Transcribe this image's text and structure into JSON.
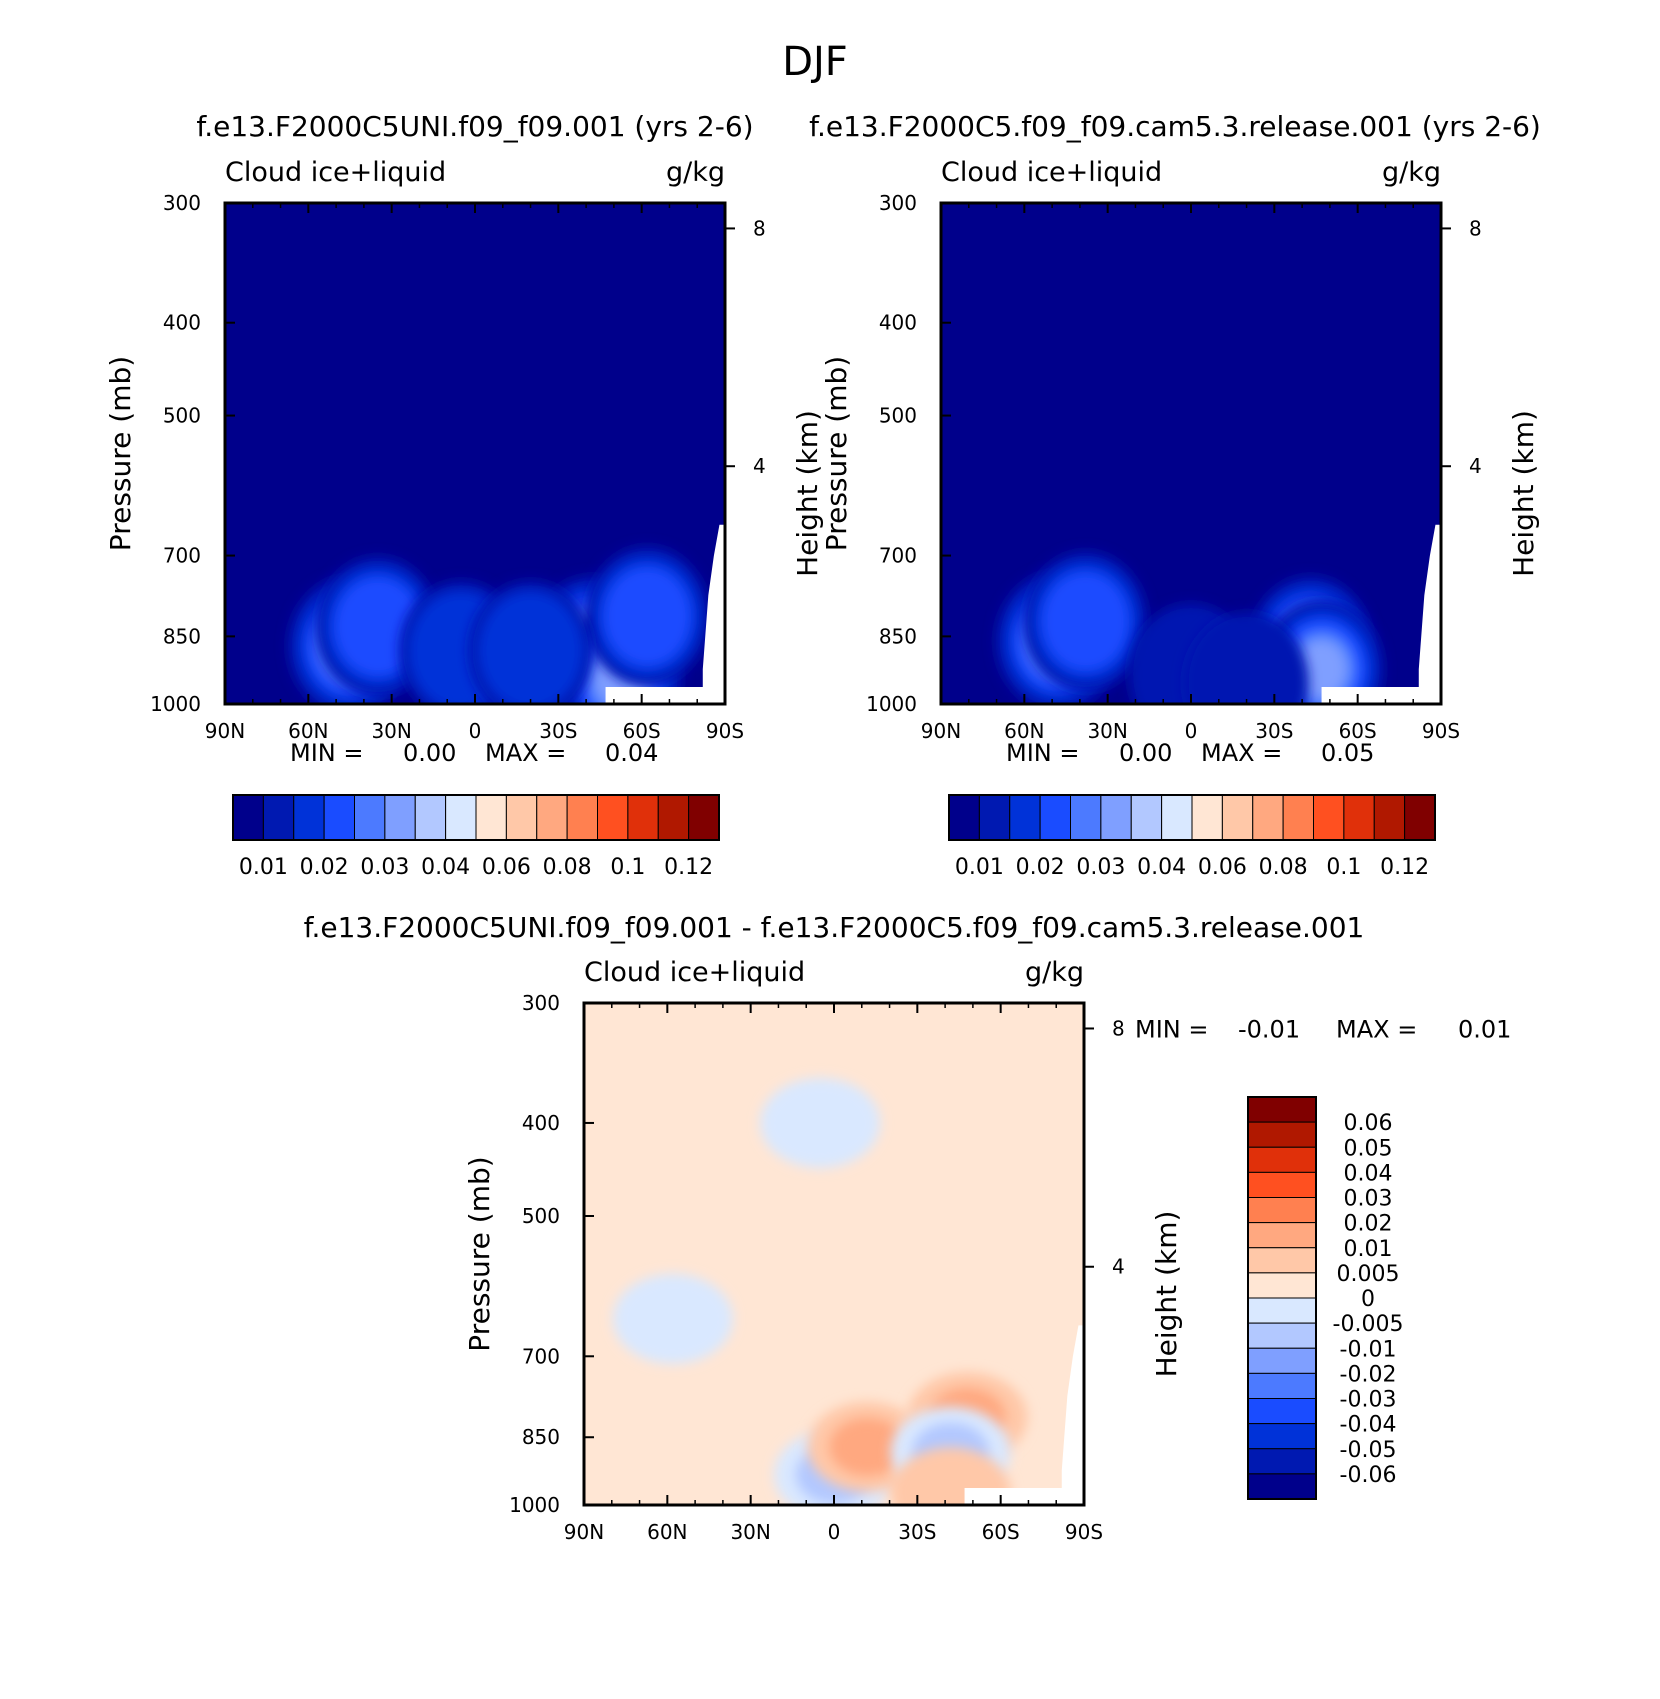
{
  "figure": {
    "title": "DJF"
  },
  "colors": {
    "frame": "#000000",
    "abs_palette": [
      "#00008b",
      "#0019b1",
      "#0032d8",
      "#1a4cff",
      "#4c7aff",
      "#7f9fff",
      "#b2c8ff",
      "#d9e8ff",
      "#ffe6d4",
      "#ffc8a8",
      "#ffa880",
      "#ff8050",
      "#ff5020",
      "#e0300a",
      "#b01800",
      "#800000"
    ],
    "diff_palette": [
      "#00008b",
      "#0019b1",
      "#0032d8",
      "#1a4cff",
      "#4c7aff",
      "#7f9fff",
      "#b2c8ff",
      "#d9e8ff",
      "#ffe6d4",
      "#ffc8a8",
      "#ffa880",
      "#ff8050",
      "#ff5020",
      "#e0300a",
      "#b01800",
      "#800000"
    ]
  },
  "chart_data": [
    {
      "id": "panel-1",
      "type": "heatmap",
      "title": "f.e13.F2000C5UNI.f09_f09.001 (yrs 2-6)",
      "variable_label": "Cloud ice+liquid",
      "units_label": "g/kg",
      "ylabel": "Pressure (mb)",
      "y2label": "Height (km)",
      "x_ticks": [
        "90N",
        "60N",
        "30N",
        "0",
        "30S",
        "60S",
        "90S"
      ],
      "x_range": [
        90,
        -90
      ],
      "y_ticks": [
        "300",
        "400",
        "500",
        "700",
        "850",
        "1000"
      ],
      "y2_ticks": [
        "8",
        "4"
      ],
      "y_range": [
        1000,
        300
      ],
      "y_scale": "log",
      "min_label": "MIN =",
      "min_value": "0.00",
      "max_label": "MAX =",
      "max_value": "0.04",
      "colorbar_labels": [
        "0.01",
        "0.02",
        "0.03",
        "0.04",
        "0.06",
        "0.08",
        "0.1",
        "0.12"
      ],
      "colorbar_orientation": "horizontal",
      "blobs": [
        {
          "lat": 45,
          "p": 870,
          "level": 4
        },
        {
          "lat": 35,
          "p": 830,
          "level": 3
        },
        {
          "lat": 5,
          "p": 880,
          "level": 2
        },
        {
          "lat": -42,
          "p": 870,
          "level": 6
        },
        {
          "lat": -52,
          "p": 940,
          "level": 5
        },
        {
          "lat": -62,
          "p": 810,
          "level": 3
        },
        {
          "lat": -20,
          "p": 880,
          "level": 2
        }
      ]
    },
    {
      "id": "panel-2",
      "type": "heatmap",
      "title": "f.e13.F2000C5.f09_f09.cam5.3.release.001 (yrs 2-6)",
      "variable_label": "Cloud ice+liquid",
      "units_label": "g/kg",
      "ylabel": "Pressure (mb)",
      "y2label": "Height (km)",
      "x_ticks": [
        "90N",
        "60N",
        "30N",
        "0",
        "30S",
        "60S",
        "90S"
      ],
      "x_range": [
        90,
        -90
      ],
      "y_ticks": [
        "300",
        "400",
        "500",
        "700",
        "850",
        "1000"
      ],
      "y2_ticks": [
        "8",
        "4"
      ],
      "y_range": [
        1000,
        300
      ],
      "y_scale": "log",
      "min_label": "MIN =",
      "min_value": "0.00",
      "max_label": "MAX =",
      "max_value": "0.05",
      "colorbar_labels": [
        "0.01",
        "0.02",
        "0.03",
        "0.04",
        "0.06",
        "0.08",
        "0.1",
        "0.12"
      ],
      "colorbar_orientation": "horizontal",
      "blobs": [
        {
          "lat": 48,
          "p": 860,
          "level": 4
        },
        {
          "lat": 38,
          "p": 820,
          "level": 3
        },
        {
          "lat": 0,
          "p": 930,
          "level": 1
        },
        {
          "lat": -43,
          "p": 870,
          "level": 6
        },
        {
          "lat": -47,
          "p": 920,
          "level": 5
        },
        {
          "lat": -20,
          "p": 950,
          "level": 1
        }
      ]
    },
    {
      "id": "panel-diff",
      "type": "heatmap",
      "title": "f.e13.F2000C5UNI.f09_f09.001 - f.e13.F2000C5.f09_f09.cam5.3.release.001",
      "variable_label": "Cloud ice+liquid",
      "units_label": "g/kg",
      "ylabel": "Pressure (mb)",
      "y2label": "Height (km)",
      "x_ticks": [
        "90N",
        "60N",
        "30N",
        "0",
        "30S",
        "60S",
        "90S"
      ],
      "x_range": [
        90,
        -90
      ],
      "y_ticks": [
        "300",
        "400",
        "500",
        "700",
        "850",
        "1000"
      ],
      "y2_ticks": [
        "8",
        "4"
      ],
      "y_range": [
        1000,
        300
      ],
      "y_scale": "log",
      "min_label": "MIN =",
      "min_value": "-0.01",
      "max_label": "MAX =",
      "max_value": "0.01",
      "colorbar_labels": [
        "0.06",
        "0.05",
        "0.04",
        "0.03",
        "0.02",
        "0.01",
        "0.005",
        "0",
        "-0.005",
        "-0.01",
        "-0.02",
        "-0.03",
        "-0.04",
        "-0.05",
        "-0.06"
      ],
      "colorbar_orientation": "vertical",
      "blobs": [
        {
          "lat": 58,
          "p": 640,
          "level": -1
        },
        {
          "lat": 5,
          "p": 400,
          "level": -1
        },
        {
          "lat": 0,
          "p": 930,
          "level": -2
        },
        {
          "lat": -12,
          "p": 870,
          "level": 2
        },
        {
          "lat": -48,
          "p": 810,
          "level": 2
        },
        {
          "lat": -42,
          "p": 880,
          "level": -2
        },
        {
          "lat": -42,
          "p": 970,
          "level": 1
        }
      ]
    }
  ]
}
